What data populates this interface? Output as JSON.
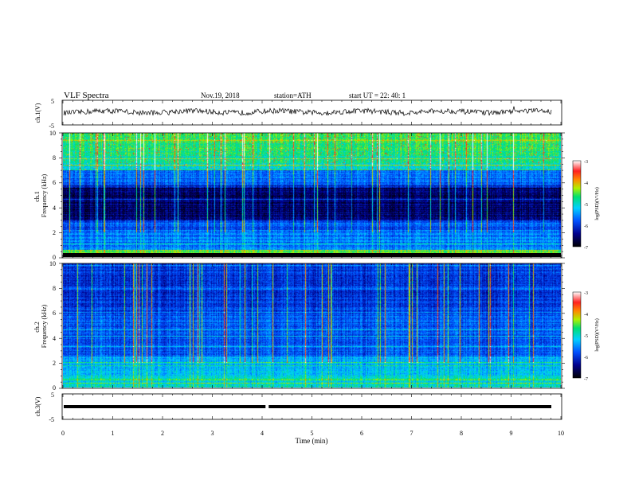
{
  "header": {
    "title": "VLF  Spectra",
    "date": "Nov.19, 2018",
    "station": "station=ATH",
    "start": "start  UT  =    22: 40: 1"
  },
  "chart_data": [
    {
      "type": "line",
      "ylabel": "ch.1(V)",
      "ylim": [
        -5,
        5
      ],
      "y_ticks": [
        "5",
        "-5"
      ],
      "xlim": [
        0,
        10
      ],
      "level": 0.3,
      "series": [
        {
          "values": "noisy voltage trace fluctuating near 0.3 V"
        }
      ]
    },
    {
      "type": "heatmap",
      "ylabel": "ch.1\nFrequency  (kHz)",
      "ylim": [
        0,
        10
      ],
      "y_ticks": [
        "0",
        "2",
        "4",
        "6",
        "8",
        "10"
      ],
      "xlim": [
        0,
        10
      ],
      "colorbar": {
        "label": "log(PSD)(V²/Hz)",
        "ticks": [
          "-3",
          "-4",
          "-5",
          "-6",
          "-7"
        ],
        "range": [
          -7,
          -3
        ]
      }
    },
    {
      "type": "heatmap",
      "ylabel": "ch.2\nFrequency  (kHz)",
      "ylim": [
        0,
        10
      ],
      "y_ticks": [
        "0",
        "2",
        "4",
        "6",
        "8",
        "10"
      ],
      "xlim": [
        0,
        10
      ],
      "colorbar": {
        "label": "log(PSD)(V²/Hz)",
        "ticks": [
          "-3",
          "-4",
          "-5",
          "-6",
          "-7"
        ],
        "range": [
          -7,
          -3
        ]
      }
    },
    {
      "type": "line",
      "ylabel": "ch.3(V)",
      "ylim": [
        -5,
        5
      ],
      "y_ticks": [
        "5",
        "-5"
      ],
      "xlim": [
        0,
        10
      ],
      "level": 0,
      "gap_at_min": 4.1,
      "series": [
        {
          "values": "flat trace at 0 V with a brief gap near 4.1 min"
        }
      ]
    }
  ],
  "xaxis": {
    "label": "Time  (min)",
    "ticks": [
      "0",
      "1",
      "2",
      "3",
      "4",
      "5",
      "6",
      "7",
      "8",
      "9",
      "10"
    ]
  }
}
